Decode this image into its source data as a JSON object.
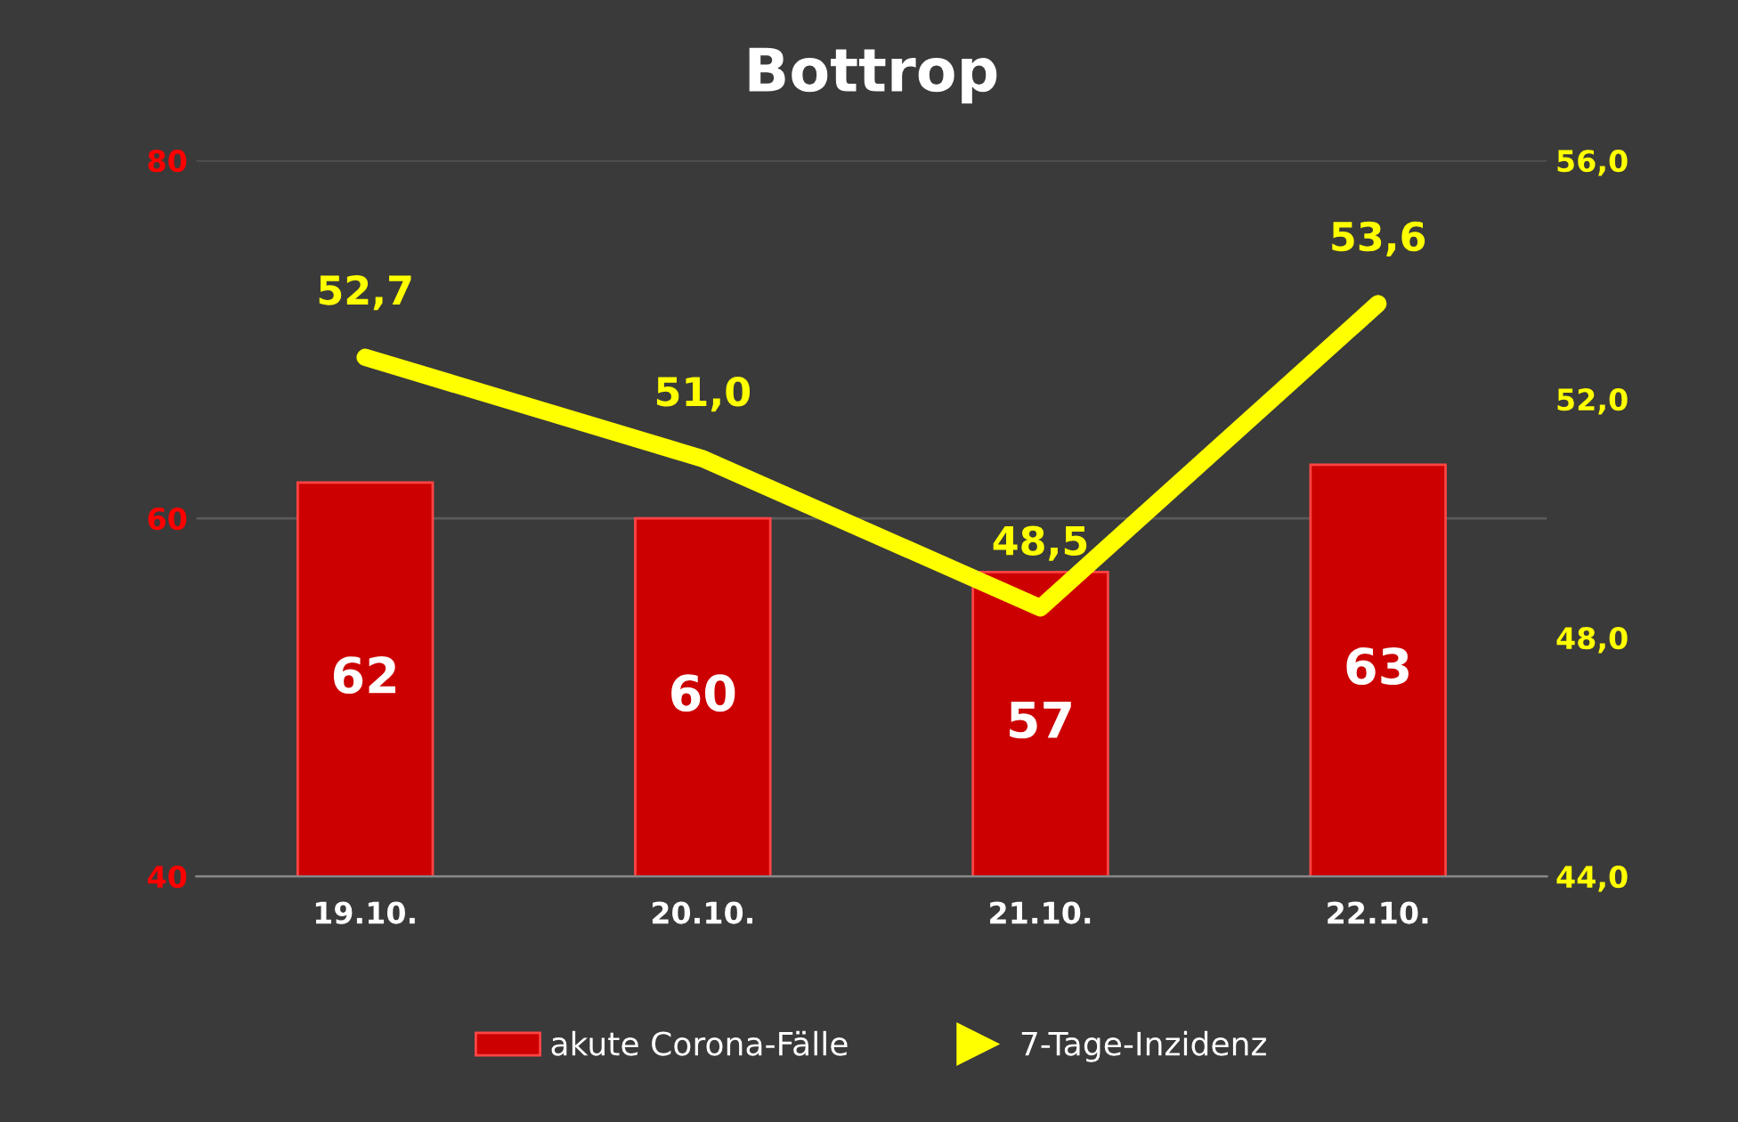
{
  "chart_data": {
    "type": "bar",
    "title": "Bottrop",
    "categories": [
      "19.10.",
      "20.10.",
      "21.10.",
      "22.10."
    ],
    "series": [
      {
        "name": "akute Corona-Fälle",
        "color": "#cc0000",
        "values": [
          62,
          60,
          57,
          63
        ],
        "data_labels": true
      },
      {
        "name": "7-Tage-Inzidenz",
        "type": "line",
        "axis": "y2",
        "color": "#ffff00",
        "values": [
          52.7,
          51.0,
          48.5,
          53.6
        ],
        "value_labels": [
          "52,7",
          "51,0",
          "48,5",
          "53,6"
        ]
      }
    ],
    "ylim": [
      40,
      80
    ],
    "yticks": [
      40,
      60,
      80
    ],
    "y2lim": [
      44,
      56
    ],
    "y2ticks": [
      {
        "value": 44,
        "label": "44,0"
      },
      {
        "value": 48,
        "label": "48,0"
      },
      {
        "value": 52,
        "label": "52,0"
      },
      {
        "value": 56,
        "label": "56,0"
      }
    ],
    "grid": "y",
    "legend": "bottom",
    "marker": "none",
    "line_style": "solid"
  }
}
